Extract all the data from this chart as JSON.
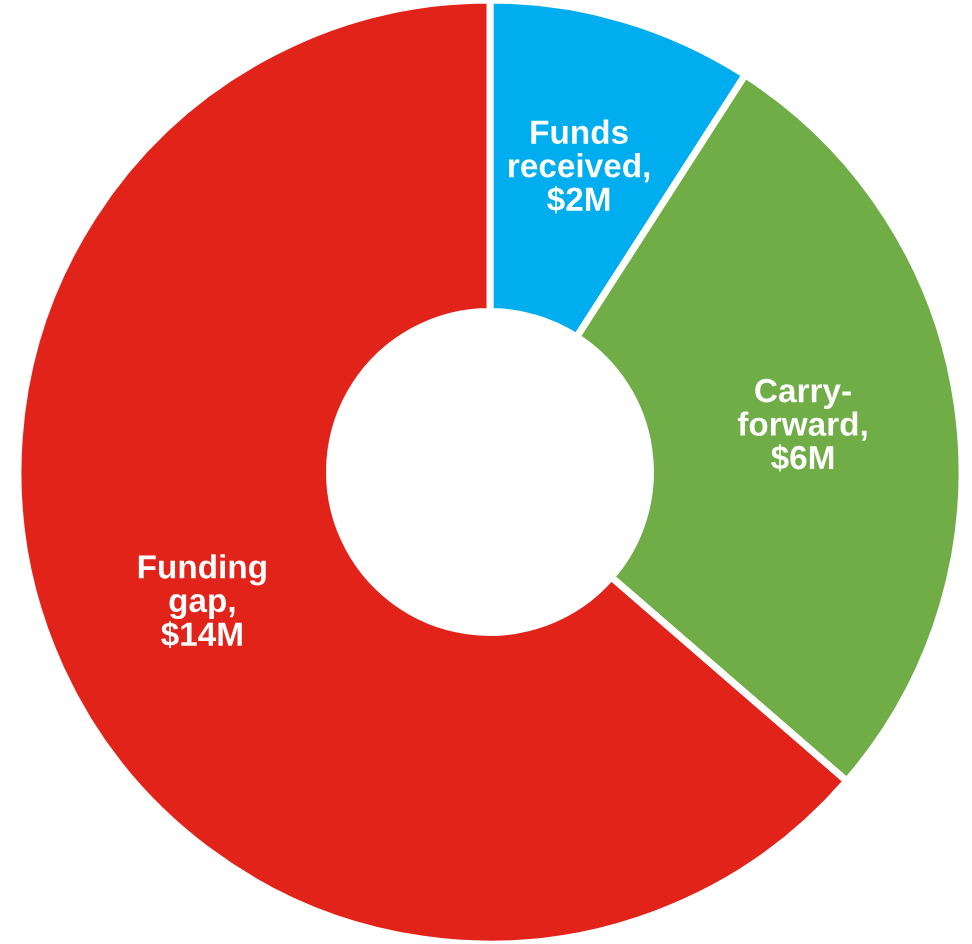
{
  "chart_data": {
    "type": "donut",
    "categories": [
      "Funds received, $2M",
      "Carry-forward, $6M",
      "Funding gap, $14M"
    ],
    "values": [
      2,
      6,
      14
    ],
    "colors": [
      "#00aeef",
      "#70ad47",
      "#e2231a"
    ],
    "legend": false
  }
}
